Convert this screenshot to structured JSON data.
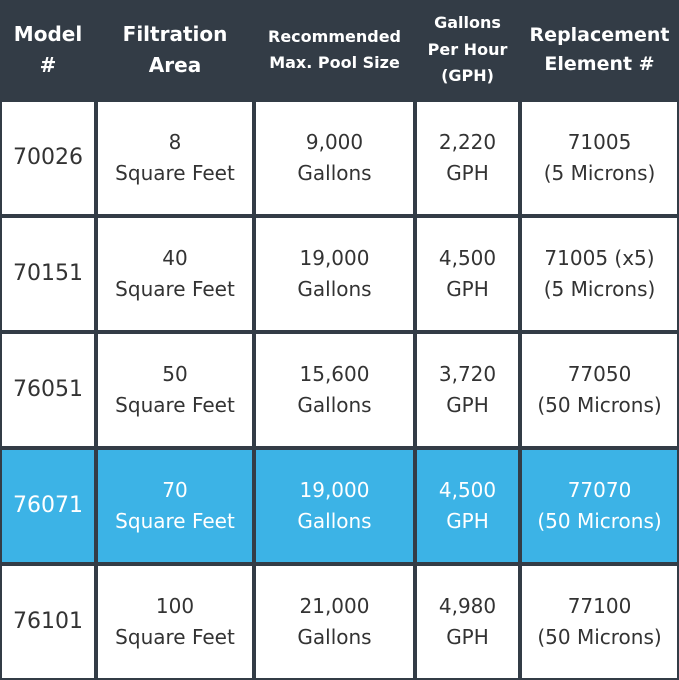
{
  "colors": {
    "header_bg": "#333c46",
    "highlight": "#3cb3e6",
    "cell_bg": "#ffffff",
    "text": "#333333"
  },
  "headers": [
    {
      "line1": "Model",
      "line2": "#",
      "line3": ""
    },
    {
      "line1": "Filtration",
      "line2": "Area",
      "line3": ""
    },
    {
      "line1": "Recommended",
      "line2": "Max. Pool Size",
      "line3": ""
    },
    {
      "line1": "Gallons",
      "line2": "Per Hour",
      "line3": "(GPH)"
    },
    {
      "line1": "Replacement",
      "line2": "Element #",
      "line3": ""
    }
  ],
  "rows": [
    {
      "model": "70026",
      "area": [
        "8",
        "Square Feet"
      ],
      "pool": [
        "9,000",
        "Gallons"
      ],
      "gph": [
        "2,220",
        "GPH"
      ],
      "element": [
        "71005",
        "(5 Microns)"
      ]
    },
    {
      "model": "70151",
      "area": [
        "40",
        "Square Feet"
      ],
      "pool": [
        "19,000",
        "Gallons"
      ],
      "gph": [
        "4,500",
        "GPH"
      ],
      "element": [
        "71005 (x5)",
        "(5 Microns)"
      ]
    },
    {
      "model": "76051",
      "area": [
        "50",
        "Square Feet"
      ],
      "pool": [
        "15,600",
        "Gallons"
      ],
      "gph": [
        "3,720",
        "GPH"
      ],
      "element": [
        "77050",
        "(50 Microns)"
      ]
    },
    {
      "model": "76071",
      "area": [
        "70",
        "Square Feet"
      ],
      "pool": [
        "19,000",
        "Gallons"
      ],
      "gph": [
        "4,500",
        "GPH"
      ],
      "element": [
        "77070",
        "(50 Microns)"
      ]
    },
    {
      "model": "76101",
      "area": [
        "100",
        "Square Feet"
      ],
      "pool": [
        "21,000",
        "Gallons"
      ],
      "gph": [
        "4,980",
        "GPH"
      ],
      "element": [
        "77100",
        "(50 Microns)"
      ]
    }
  ]
}
